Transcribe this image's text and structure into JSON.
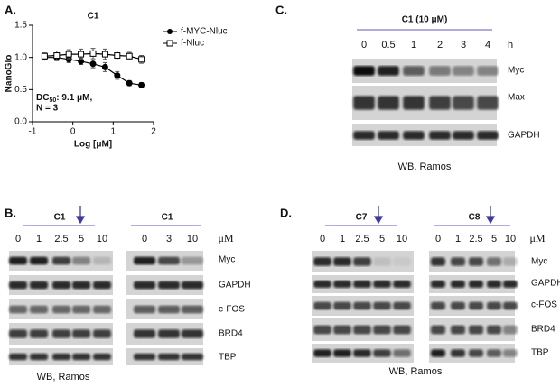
{
  "chart_data": {
    "type": "line",
    "panel_label": "A.",
    "title": "C1",
    "xlabel": "Log [μM]",
    "ylabel": "NanoGlo",
    "x": [
      -0.7,
      -0.4,
      -0.1,
      0.2,
      0.5,
      0.8,
      1.1,
      1.4,
      1.7
    ],
    "xlim": [
      -1,
      2
    ],
    "xticks": [
      -1,
      0,
      1,
      2
    ],
    "ylim": [
      0,
      1.5
    ],
    "yticks": [
      {
        "value": 0,
        "label": "0.0"
      },
      {
        "value": 0.5,
        "label": "0.5"
      },
      {
        "value": 1,
        "label": "1.0"
      },
      {
        "value": 1.5,
        "label": "1.5"
      }
    ],
    "legend": "right",
    "series": [
      {
        "name": "f-MYC-Nluc",
        "color": "#000000",
        "marker": "circle-filled",
        "values": [
          1.0,
          1.0,
          0.97,
          0.94,
          0.9,
          0.85,
          0.72,
          0.6,
          0.57
        ],
        "errors": [
          0.04,
          0.05,
          0.05,
          0.05,
          0.06,
          0.07,
          0.06,
          0.04,
          0.04
        ]
      },
      {
        "name": "f-Nluc",
        "color": "#000000",
        "marker": "square-open",
        "values": [
          1.02,
          1.03,
          1.05,
          1.05,
          1.06,
          1.05,
          1.03,
          1.02,
          0.97
        ],
        "errors": [
          0.05,
          0.07,
          0.07,
          0.08,
          0.08,
          0.08,
          0.07,
          0.06,
          0.06
        ]
      }
    ],
    "annotation": [
      "DC",
      "50",
      ": 9.1 μM,",
      "N = 3"
    ]
  },
  "panel_c": {
    "label": "C.",
    "title": "C1 (10 μM)",
    "lanes": [
      "0",
      "0.5",
      "1",
      "2",
      "3",
      "4"
    ],
    "unit": "h",
    "proteins": [
      "Myc",
      "Max",
      "GAPDH"
    ],
    "caption": "WB, Ramos"
  },
  "panel_b": {
    "label": "B.",
    "blots": [
      {
        "title": "C1",
        "lanes": [
          "0",
          "1",
          "2.5",
          "5",
          "10"
        ]
      },
      {
        "title": "C1",
        "lanes": [
          "0",
          "3",
          "10"
        ]
      }
    ],
    "unit": "μM",
    "proteins": [
      "Myc",
      "GAPDH",
      "c-FOS",
      "BRD4",
      "TBP"
    ],
    "caption": "WB, Ramos"
  },
  "panel_d": {
    "label": "D.",
    "blots": [
      {
        "title": "C7",
        "lanes": [
          "0",
          "1",
          "2.5",
          "5",
          "10"
        ]
      },
      {
        "title": "C8",
        "lanes": [
          "0",
          "1",
          "2.5",
          "5",
          "10"
        ]
      }
    ],
    "unit": "μM",
    "proteins": [
      "Myc",
      "GAPDH",
      "c-FOS",
      "BRD4",
      "TBP"
    ],
    "caption": "WB, Ramos"
  }
}
